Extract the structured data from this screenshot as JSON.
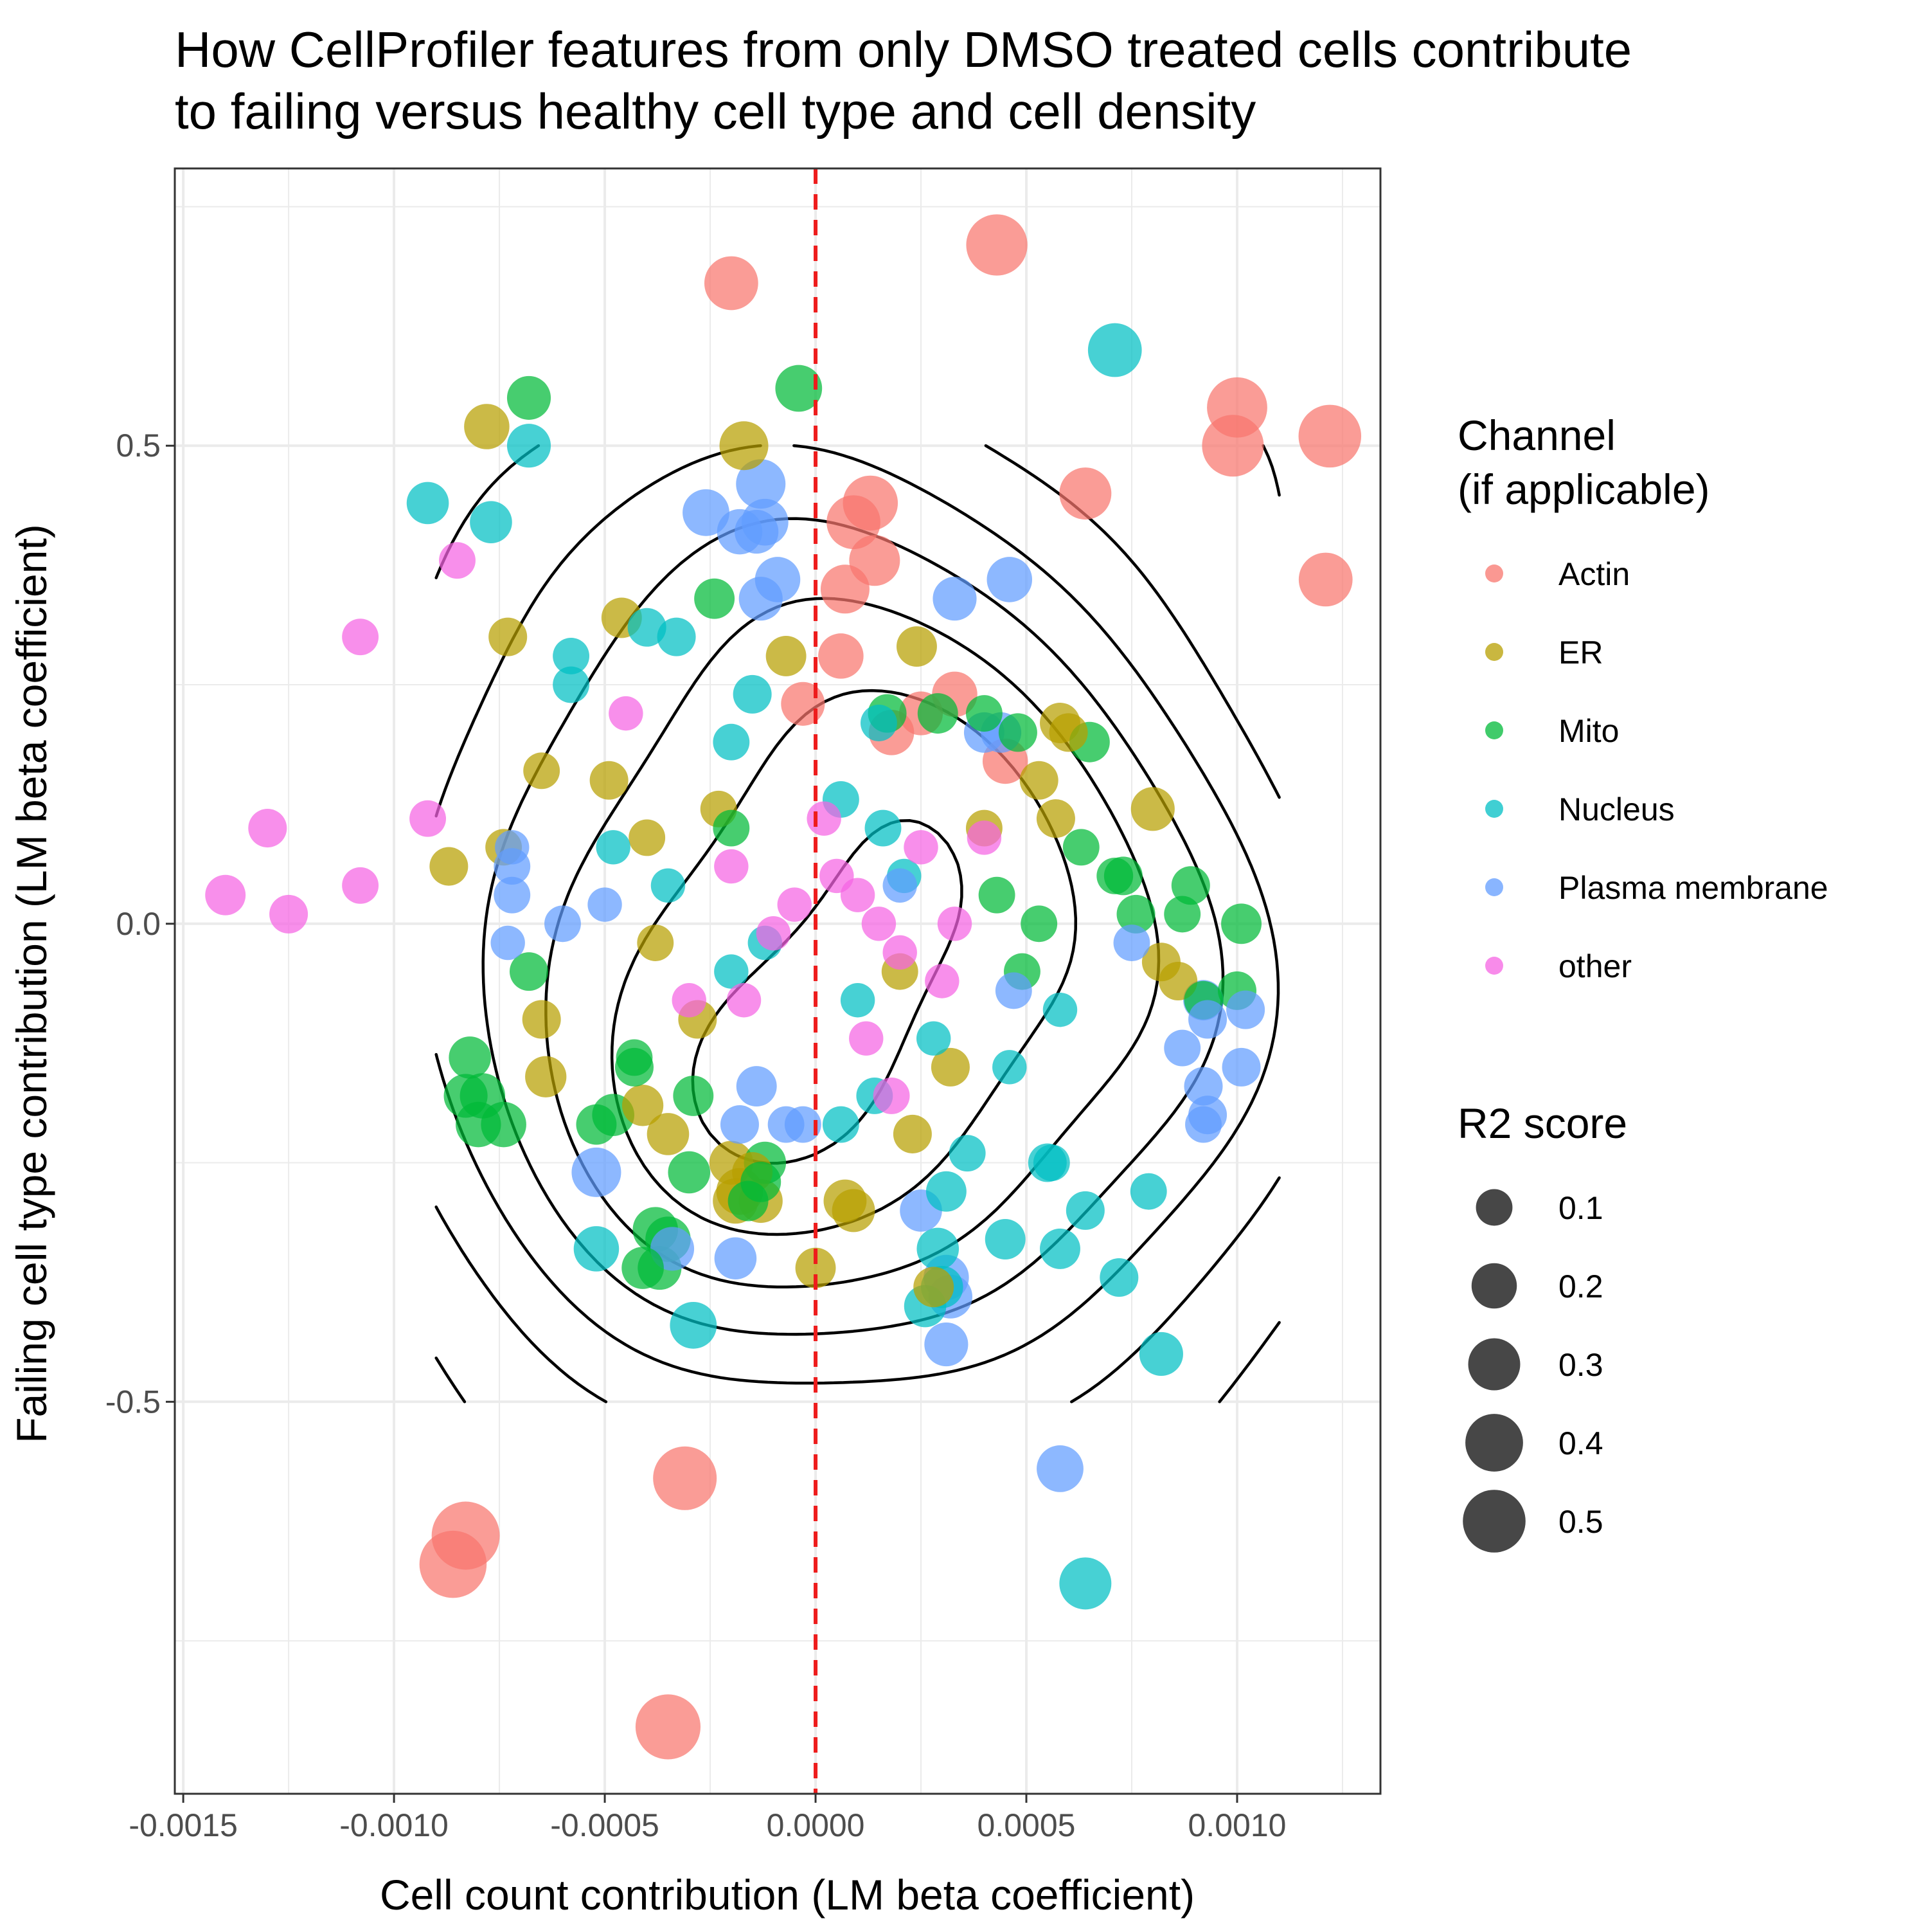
{
  "chart_data": {
    "type": "scatter",
    "title_lines": [
      "How CellProfiler features from only DMSO treated cells contribute",
      "to failing versus healthy cell type and cell density"
    ],
    "xlabel": "Cell count contribution (LM beta coefficient)",
    "ylabel": "Failing cell type contribution (LM beta coefficient)",
    "xlim": [
      -0.00152,
      0.00134
    ],
    "ylim": [
      -0.91,
      0.79
    ],
    "x_ticks": [
      -0.0015,
      -0.001,
      -0.0005,
      0.0,
      0.0005,
      0.001
    ],
    "x_tick_labels": [
      "-0.0015",
      "-0.0010",
      "-0.0005",
      "0.0000",
      "0.0005",
      "0.0010"
    ],
    "y_ticks": [
      -0.5,
      0.0,
      0.5
    ],
    "y_tick_labels": [
      "-0.5",
      "0.0",
      "0.5"
    ],
    "grid": true,
    "reference_line": {
      "x": 0,
      "color": "#ee1c1c",
      "style": "dashed"
    },
    "legend": {
      "position": "right",
      "color_title_lines": [
        "Channel",
        "(if applicable)"
      ],
      "size_title": "R2 score",
      "size_values": [
        0.1,
        0.2,
        0.3,
        0.4,
        0.5
      ],
      "size_labels": [
        "0.1",
        "0.2",
        "0.3",
        "0.4",
        "0.5"
      ]
    },
    "channels": [
      {
        "name": "Actin",
        "color": "#F8766D"
      },
      {
        "name": "ER",
        "color": "#B79F00"
      },
      {
        "name": "Mito",
        "color": "#00BA38"
      },
      {
        "name": "Nucleus",
        "color": "#00BFC4"
      },
      {
        "name": "Plasma membrane",
        "color": "#619CFF"
      },
      {
        "name": "other",
        "color": "#F564E3"
      }
    ],
    "series": [
      {
        "name": "Actin",
        "points": [
          [
            0.00043,
            0.71,
            0.47
          ],
          [
            -0.0002,
            0.67,
            0.33
          ],
          [
            0.001,
            0.54,
            0.45
          ],
          [
            0.00122,
            0.51,
            0.5
          ],
          [
            0.00099,
            0.5,
            0.48
          ],
          [
            0.00064,
            0.45,
            0.3
          ],
          [
            0.00013,
            0.44,
            0.35
          ],
          [
            9e-05,
            0.42,
            0.33
          ],
          [
            0.00014,
            0.38,
            0.28
          ],
          [
            0.00121,
            0.36,
            0.33
          ],
          [
            7e-05,
            0.35,
            0.25
          ],
          [
            6e-05,
            0.28,
            0.2
          ],
          [
            0.00033,
            0.24,
            0.2
          ],
          [
            0.00045,
            0.17,
            0.2
          ],
          [
            -3e-05,
            0.23,
            0.18
          ],
          [
            0.00018,
            0.2,
            0.2
          ],
          [
            0.00025,
            0.22,
            0.18
          ],
          [
            -0.00031,
            -0.58,
            0.52
          ],
          [
            -0.00083,
            -0.64,
            0.62
          ],
          [
            -0.00086,
            -0.67,
            0.6
          ],
          [
            -0.00035,
            -0.84,
            0.55
          ]
        ]
      },
      {
        "name": "ER",
        "points": [
          [
            -0.00078,
            0.52,
            0.2
          ],
          [
            -0.00017,
            0.5,
            0.25
          ],
          [
            -0.00046,
            0.32,
            0.14
          ],
          [
            -0.00073,
            0.3,
            0.12
          ],
          [
            0.00024,
            0.29,
            0.14
          ],
          [
            -7e-05,
            0.28,
            0.14
          ],
          [
            0.00058,
            0.21,
            0.14
          ],
          [
            0.0006,
            0.2,
            0.12
          ],
          [
            -0.00049,
            0.15,
            0.12
          ],
          [
            -0.00065,
            0.16,
            0.1
          ],
          [
            0.00053,
            0.15,
            0.12
          ],
          [
            0.0008,
            0.12,
            0.18
          ],
          [
            0.00057,
            0.11,
            0.12
          ],
          [
            -0.00074,
            0.08,
            0.1
          ],
          [
            -0.00087,
            0.06,
            0.12
          ],
          [
            -0.00023,
            0.12,
            0.1
          ],
          [
            -0.0004,
            0.09,
            0.1
          ],
          [
            0.00082,
            -0.04,
            0.12
          ],
          [
            0.00086,
            -0.06,
            0.12
          ],
          [
            -0.00065,
            -0.1,
            0.12
          ],
          [
            -0.00064,
            -0.16,
            0.15
          ],
          [
            -0.00041,
            -0.19,
            0.15
          ],
          [
            -0.00035,
            -0.22,
            0.16
          ],
          [
            -0.0002,
            -0.25,
            0.18
          ],
          [
            -0.00018,
            -0.28,
            0.22
          ],
          [
            -0.00019,
            -0.29,
            0.2
          ],
          [
            -0.00013,
            -0.29,
            0.18
          ],
          [
            7e-05,
            -0.29,
            0.17
          ],
          [
            9e-05,
            -0.3,
            0.17
          ],
          [
            0.0,
            -0.36,
            0.14
          ],
          [
            0.00028,
            -0.38,
            0.14
          ],
          [
            -0.00028,
            -0.1,
            0.12
          ],
          [
            0.00032,
            -0.15,
            0.12
          ],
          [
            0.00023,
            -0.22,
            0.12
          ],
          [
            -0.00015,
            -0.26,
            0.14
          ],
          [
            0.0004,
            0.1,
            0.1
          ],
          [
            0.0002,
            -0.05,
            0.1
          ],
          [
            -0.00038,
            -0.02,
            0.1
          ]
        ]
      },
      {
        "name": "Mito",
        "points": [
          [
            -0.00068,
            0.55,
            0.18
          ],
          [
            -4e-05,
            0.56,
            0.22
          ],
          [
            -0.00024,
            0.34,
            0.14
          ],
          [
            0.00065,
            0.19,
            0.14
          ],
          [
            0.00048,
            0.2,
            0.12
          ],
          [
            0.00029,
            0.22,
            0.14
          ],
          [
            0.00017,
            0.22,
            0.12
          ],
          [
            0.00063,
            0.08,
            0.1
          ],
          [
            0.00073,
            0.05,
            0.12
          ],
          [
            0.00071,
            0.05,
            0.1
          ],
          [
            0.00089,
            0.04,
            0.12
          ],
          [
            0.00087,
            0.01,
            0.1
          ],
          [
            0.00076,
            0.01,
            0.12
          ],
          [
            0.00101,
            0.0,
            0.14
          ],
          [
            0.001,
            -0.07,
            0.12
          ],
          [
            -0.00068,
            -0.05,
            0.12
          ],
          [
            -0.00082,
            -0.14,
            0.16
          ],
          [
            -0.00083,
            -0.18,
            0.18
          ],
          [
            -0.00079,
            -0.18,
            0.2
          ],
          [
            -0.0008,
            -0.21,
            0.2
          ],
          [
            -0.00074,
            -0.21,
            0.2
          ],
          [
            -0.00048,
            -0.2,
            0.16
          ],
          [
            -0.00052,
            -0.21,
            0.14
          ],
          [
            -0.00043,
            -0.15,
            0.12
          ],
          [
            -0.00029,
            -0.18,
            0.14
          ],
          [
            -0.0003,
            -0.26,
            0.16
          ],
          [
            -0.00012,
            -0.25,
            0.16
          ],
          [
            -0.00013,
            -0.27,
            0.14
          ],
          [
            -0.00016,
            -0.29,
            0.14
          ],
          [
            -0.00038,
            -0.32,
            0.2
          ],
          [
            -0.00035,
            -0.33,
            0.2
          ],
          [
            -0.00037,
            -0.36,
            0.18
          ],
          [
            -0.00041,
            -0.36,
            0.16
          ],
          [
            -0.00043,
            -0.14,
            0.1
          ],
          [
            0.00049,
            -0.05,
            0.1
          ],
          [
            0.00053,
            0.0,
            0.1
          ],
          [
            0.00043,
            0.03,
            0.1
          ],
          [
            0.0004,
            0.22,
            0.1
          ],
          [
            0.00092,
            -0.08,
            0.12
          ],
          [
            -0.0002,
            0.1,
            0.1
          ]
        ]
      },
      {
        "name": "Nucleus",
        "points": [
          [
            0.00071,
            0.6,
            0.33
          ],
          [
            -0.00068,
            0.5,
            0.18
          ],
          [
            -0.00092,
            0.44,
            0.16
          ],
          [
            -0.00077,
            0.42,
            0.16
          ],
          [
            -0.0004,
            0.31,
            0.12
          ],
          [
            -0.00033,
            0.3,
            0.12
          ],
          [
            -0.00058,
            0.28,
            0.1
          ],
          [
            -0.00058,
            0.25,
            0.1
          ],
          [
            -0.00015,
            0.24,
            0.12
          ],
          [
            -0.0002,
            0.19,
            0.1
          ],
          [
            6e-05,
            0.13,
            0.1
          ],
          [
            0.00016,
            0.1,
            0.1
          ],
          [
            -0.00052,
            -0.34,
            0.2
          ],
          [
            -0.00029,
            -0.42,
            0.22
          ],
          [
            0.00082,
            -0.45,
            0.18
          ],
          [
            0.00064,
            -0.69,
            0.3
          ],
          [
            0.00026,
            -0.4,
            0.16
          ],
          [
            0.0003,
            -0.38,
            0.16
          ],
          [
            0.00029,
            -0.34,
            0.16
          ],
          [
            0.00031,
            -0.28,
            0.14
          ],
          [
            0.00045,
            -0.33,
            0.14
          ],
          [
            0.00058,
            -0.34,
            0.14
          ],
          [
            0.00072,
            -0.37,
            0.12
          ],
          [
            0.00064,
            -0.3,
            0.12
          ],
          [
            0.00079,
            -0.28,
            0.1
          ],
          [
            0.00055,
            -0.25,
            0.12
          ],
          [
            0.00056,
            -0.25,
            0.1
          ],
          [
            0.00036,
            -0.24,
            0.1
          ],
          [
            0.00014,
            -0.18,
            0.1
          ],
          [
            6e-05,
            -0.21,
            0.1
          ],
          [
            0.00058,
            -0.09,
            0.08
          ],
          [
            0.00046,
            -0.15,
            0.08
          ],
          [
            -0.00035,
            0.04,
            0.08
          ],
          [
            -0.0002,
            -0.05,
            0.08
          ],
          [
            0.0001,
            -0.08,
            0.08
          ],
          [
            0.00021,
            0.05,
            0.08
          ],
          [
            -0.00048,
            0.08,
            0.08
          ],
          [
            0.00015,
            0.21,
            0.1
          ],
          [
            0.00028,
            -0.12,
            0.08
          ],
          [
            -0.00012,
            -0.02,
            0.08
          ]
        ]
      },
      {
        "name": "Plasma membrane",
        "points": [
          [
            -0.00013,
            0.46,
            0.26
          ],
          [
            -0.00026,
            0.43,
            0.22
          ],
          [
            -0.00012,
            0.42,
            0.22
          ],
          [
            -0.00018,
            0.41,
            0.2
          ],
          [
            -0.00014,
            0.41,
            0.18
          ],
          [
            -9e-05,
            0.36,
            0.2
          ],
          [
            -0.00013,
            0.34,
            0.18
          ],
          [
            0.00046,
            0.36,
            0.2
          ],
          [
            0.00033,
            0.34,
            0.18
          ],
          [
            -0.00052,
            -0.26,
            0.26
          ],
          [
            -0.00034,
            -0.34,
            0.18
          ],
          [
            -0.00019,
            -0.35,
            0.16
          ],
          [
            0.00031,
            -0.37,
            0.2
          ],
          [
            0.00032,
            -0.39,
            0.18
          ],
          [
            0.00031,
            -0.44,
            0.18
          ],
          [
            0.00058,
            -0.57,
            0.22
          ],
          [
            0.00025,
            -0.3,
            0.16
          ],
          [
            -0.00014,
            -0.17,
            0.14
          ],
          [
            -0.00018,
            -0.21,
            0.12
          ],
          [
            0.00092,
            -0.08,
            0.14
          ],
          [
            0.00102,
            -0.09,
            0.12
          ],
          [
            0.00093,
            -0.1,
            0.12
          ],
          [
            0.00101,
            -0.15,
            0.12
          ],
          [
            0.00092,
            -0.17,
            0.12
          ],
          [
            0.00093,
            -0.2,
            0.12
          ],
          [
            0.00092,
            -0.21,
            0.1
          ],
          [
            0.00087,
            -0.13,
            0.1
          ],
          [
            -0.00072,
            0.03,
            0.1
          ],
          [
            -0.00072,
            0.06,
            0.1
          ],
          [
            -0.0006,
            0.0,
            0.1
          ],
          [
            -0.00073,
            -0.02,
            0.08
          ],
          [
            -0.00072,
            0.08,
            0.08
          ],
          [
            0.00044,
            0.2,
            0.14
          ],
          [
            0.0004,
            0.2,
            0.14
          ],
          [
            -7e-05,
            -0.21,
            0.1
          ],
          [
            -3e-05,
            -0.21,
            0.1
          ],
          [
            0.00075,
            -0.02,
            0.1
          ],
          [
            0.00047,
            -0.07,
            0.1
          ],
          [
            -0.0005,
            0.02,
            0.08
          ],
          [
            0.0002,
            0.04,
            0.08
          ]
        ]
      },
      {
        "name": "other",
        "points": [
          [
            -0.00085,
            0.38,
            0.1
          ],
          [
            -0.00108,
            0.3,
            0.1
          ],
          [
            -0.0013,
            0.1,
            0.12
          ],
          [
            -0.00092,
            0.11,
            0.1
          ],
          [
            -0.0014,
            0.03,
            0.14
          ],
          [
            -0.00125,
            0.01,
            0.12
          ],
          [
            -0.00108,
            0.04,
            0.1
          ],
          [
            0.0001,
            0.03,
            0.08
          ],
          [
            5e-05,
            0.05,
            0.08
          ],
          [
            -5e-05,
            0.02,
            0.08
          ],
          [
            0.00015,
            0.0,
            0.08
          ],
          [
            0.0002,
            -0.03,
            0.08
          ],
          [
            -0.0002,
            0.06,
            0.08
          ],
          [
            -0.0001,
            -0.01,
            0.08
          ],
          [
            0.00025,
            0.08,
            0.08
          ],
          [
            0.0003,
            -0.06,
            0.08
          ],
          [
            -0.0003,
            -0.08,
            0.08
          ],
          [
            0.00018,
            -0.18,
            0.1
          ],
          [
            -0.00045,
            0.22,
            0.08
          ],
          [
            0.00033,
            0.0,
            0.08
          ],
          [
            2e-05,
            0.11,
            0.08
          ],
          [
            -0.00017,
            -0.08,
            0.08
          ],
          [
            0.0004,
            0.09,
            0.08
          ],
          [
            0.00012,
            -0.12,
            0.08
          ]
        ]
      }
    ]
  }
}
